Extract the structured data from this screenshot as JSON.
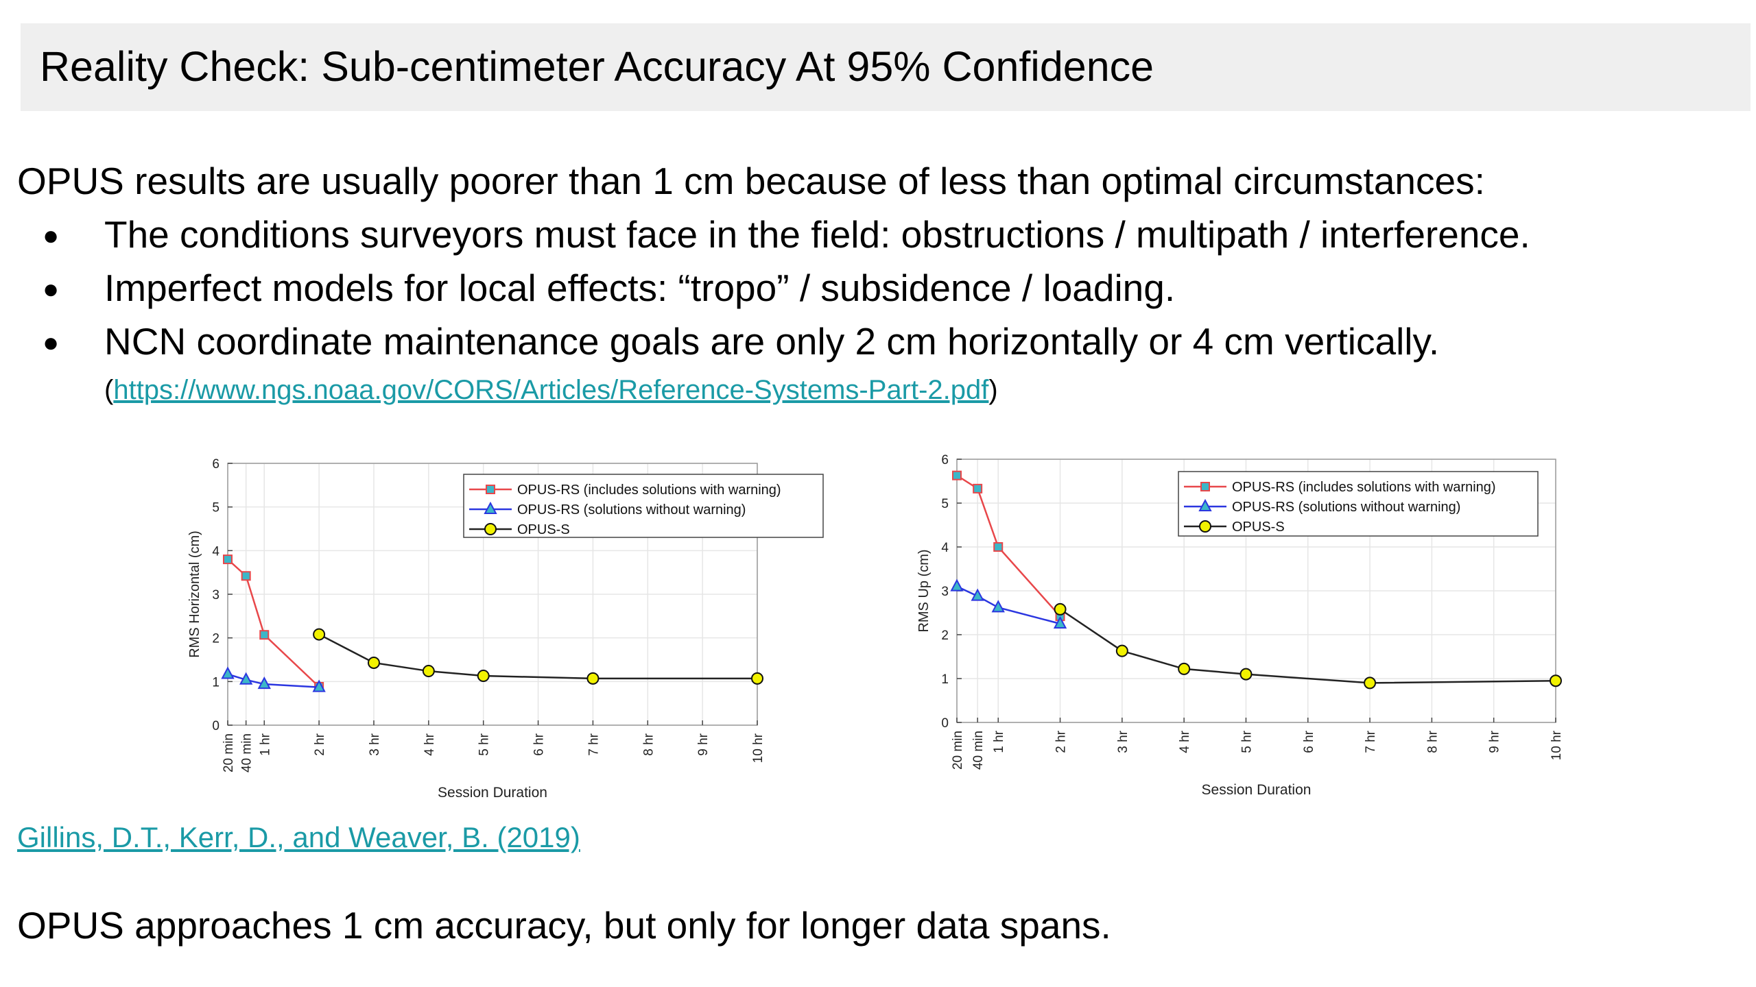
{
  "title": "Reality Check: Sub-centimeter Accuracy At 95% Confidence",
  "intro": "OPUS results are usually poorer than 1 cm because of less than optimal circumstances:",
  "bullets": [
    "The conditions surveyors must face in the field: obstructions / multipath / interference.",
    "Imperfect models for local effects: “tropo” / subsidence / loading.",
    "NCN coordinate maintenance goals are only 2 cm horizontally or 4 cm vertically."
  ],
  "reference": {
    "open": "(",
    "link": "https://www.ngs.noaa.gov/CORS/Articles/Reference-Systems-Part-2.pdf",
    "close": ")"
  },
  "citation": "Gillins, D.T., Kerr, D., and Weaver, B. (2019)",
  "conclusion": "OPUS approaches 1 cm accuracy, but only for longer data spans.",
  "colors": {
    "rs_warning": "#e8474a",
    "rs_no_warning": "#2b36e0",
    "opus_s": "#222222",
    "marker_cyan": "#3cb7c8",
    "marker_yellow": "#f2f200",
    "link": "#1a9aa6"
  },
  "chart_data": [
    {
      "type": "line",
      "xlabel": "Session Duration",
      "ylabel": "RMS Horizontal (cm)",
      "ylim": [
        0,
        6
      ],
      "yticks": [
        0,
        1,
        2,
        3,
        4,
        5,
        6
      ],
      "x_ticks": [
        {
          "label": "20 min",
          "value": 0.333
        },
        {
          "label": "40 min",
          "value": 0.667
        },
        {
          "label": "1 hr",
          "value": 1
        },
        {
          "label": "2 hr",
          "value": 2
        },
        {
          "label": "3 hr",
          "value": 3
        },
        {
          "label": "4 hr",
          "value": 4
        },
        {
          "label": "5 hr",
          "value": 5
        },
        {
          "label": "6 hr",
          "value": 6
        },
        {
          "label": "7 hr",
          "value": 7
        },
        {
          "label": "8 hr",
          "value": 8
        },
        {
          "label": "9 hr",
          "value": 9
        },
        {
          "label": "10 hr",
          "value": 10
        }
      ],
      "grid": true,
      "legend_position": "top-right",
      "series": [
        {
          "name": "OPUS-RS (includes solutions with warning)",
          "color": "#e8474a",
          "marker": "square",
          "marker_fill": "#3cb7c8",
          "points": [
            [
              0.333,
              3.8
            ],
            [
              0.667,
              3.42
            ],
            [
              1,
              2.07
            ],
            [
              2,
              0.88
            ]
          ]
        },
        {
          "name": "OPUS-RS (solutions without warning)",
          "color": "#2b36e0",
          "marker": "triangle",
          "marker_fill": "#3cb7c8",
          "points": [
            [
              0.333,
              1.17
            ],
            [
              0.667,
              1.04
            ],
            [
              1,
              0.94
            ],
            [
              2,
              0.87
            ]
          ]
        },
        {
          "name": "OPUS-S",
          "color": "#222222",
          "marker": "circle",
          "marker_fill": "#f2f200",
          "points": [
            [
              2,
              2.08
            ],
            [
              3,
              1.43
            ],
            [
              4,
              1.24
            ],
            [
              5,
              1.13
            ],
            [
              7,
              1.07
            ],
            [
              10,
              1.07
            ]
          ]
        }
      ]
    },
    {
      "type": "line",
      "xlabel": "Session Duration",
      "ylabel": "RMS Up (cm)",
      "ylim": [
        0,
        6
      ],
      "yticks": [
        0,
        1,
        2,
        3,
        4,
        5,
        6
      ],
      "x_ticks": [
        {
          "label": "20 min",
          "value": 0.333
        },
        {
          "label": "40 min",
          "value": 0.667
        },
        {
          "label": "1 hr",
          "value": 1
        },
        {
          "label": "2 hr",
          "value": 2
        },
        {
          "label": "3 hr",
          "value": 3
        },
        {
          "label": "4 hr",
          "value": 4
        },
        {
          "label": "5 hr",
          "value": 5
        },
        {
          "label": "6 hr",
          "value": 6
        },
        {
          "label": "7 hr",
          "value": 7
        },
        {
          "label": "8 hr",
          "value": 8
        },
        {
          "label": "9 hr",
          "value": 9
        },
        {
          "label": "10 hr",
          "value": 10
        }
      ],
      "grid": true,
      "legend_position": "top-right",
      "series": [
        {
          "name": "OPUS-RS (includes solutions with warning)",
          "color": "#e8474a",
          "marker": "square",
          "marker_fill": "#3cb7c8",
          "points": [
            [
              0.333,
              5.63
            ],
            [
              0.667,
              5.33
            ],
            [
              1,
              4.0
            ],
            [
              2,
              2.42
            ]
          ]
        },
        {
          "name": "OPUS-RS (solutions without warning)",
          "color": "#2b36e0",
          "marker": "triangle",
          "marker_fill": "#3cb7c8",
          "points": [
            [
              0.333,
              3.1
            ],
            [
              0.667,
              2.88
            ],
            [
              1,
              2.62
            ],
            [
              2,
              2.25
            ]
          ]
        },
        {
          "name": "OPUS-S",
          "color": "#222222",
          "marker": "circle",
          "marker_fill": "#f2f200",
          "points": [
            [
              2,
              2.58
            ],
            [
              3,
              1.63
            ],
            [
              4,
              1.22
            ],
            [
              5,
              1.1
            ],
            [
              7,
              0.9
            ],
            [
              10,
              0.95
            ]
          ]
        }
      ]
    }
  ]
}
